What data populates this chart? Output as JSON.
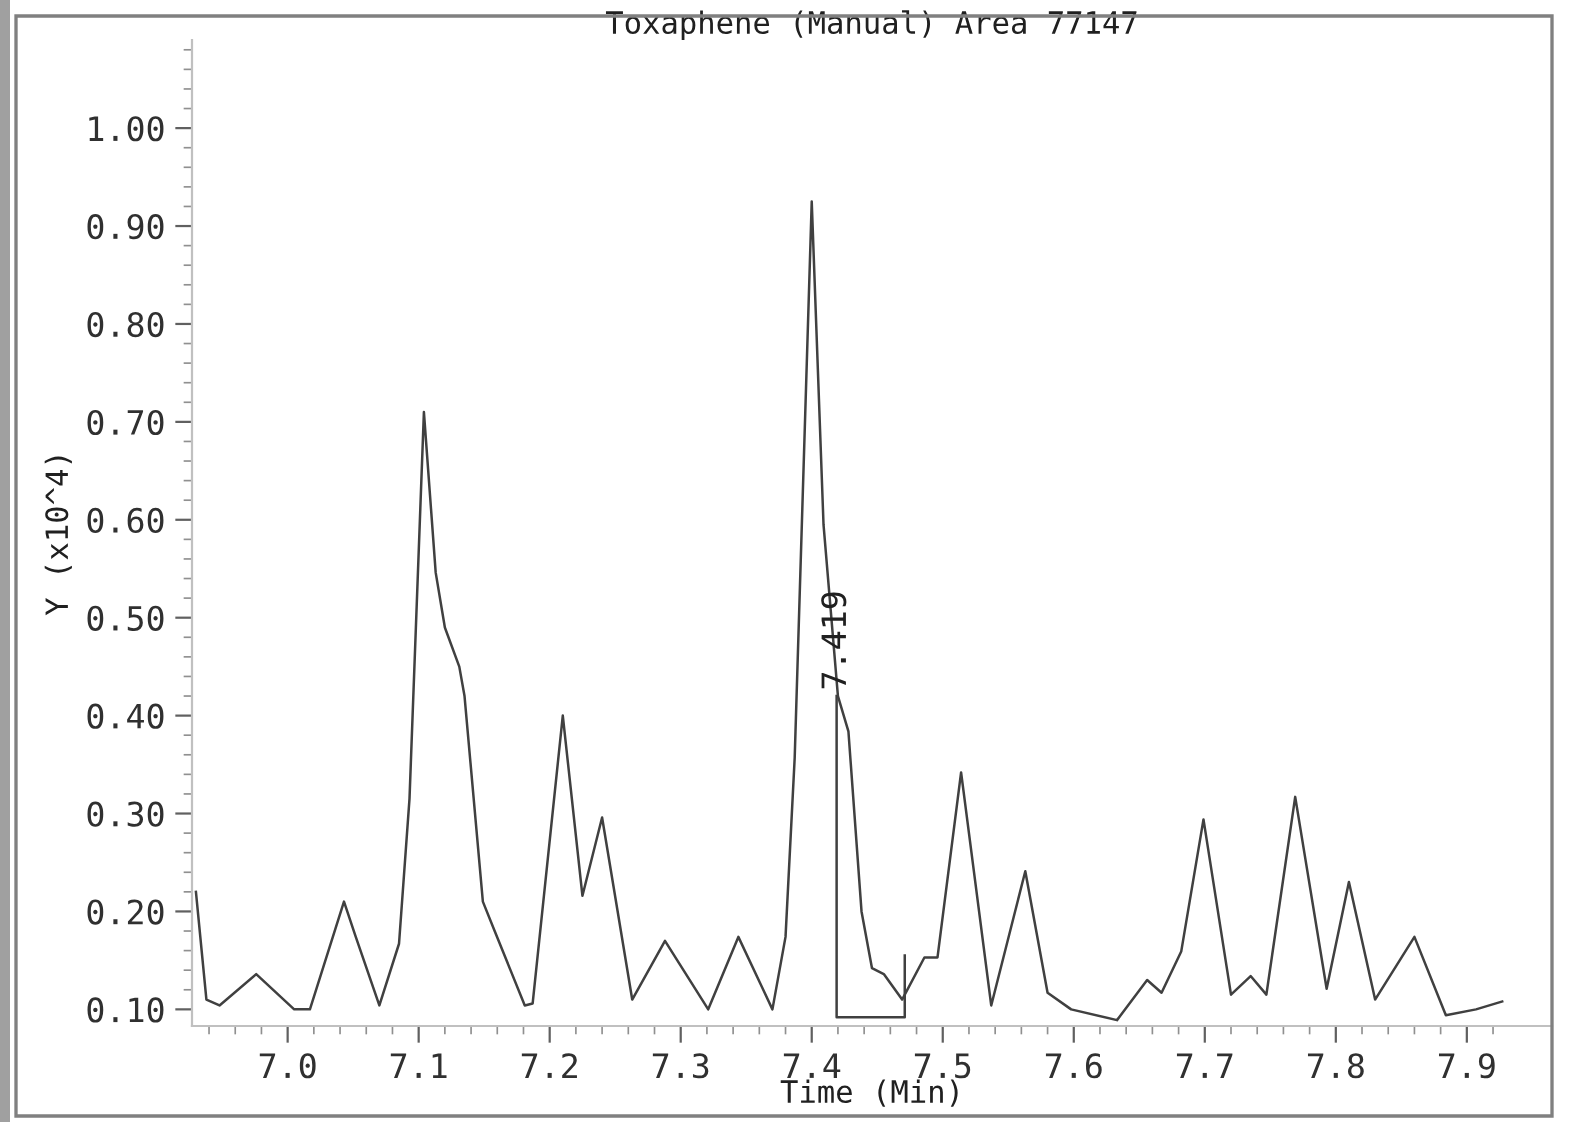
{
  "chart_data": {
    "type": "line",
    "title": "Toxaphene (Manual) Area 77147",
    "xlabel": "Time (Min)",
    "ylabel": "Y (x10^4)",
    "series": [
      {
        "color": "#404040",
        "x": [
          6.93,
          6.938,
          6.948,
          6.976,
          7.005,
          7.017,
          7.043,
          7.052,
          7.07,
          7.085,
          7.093,
          7.104,
          7.113,
          7.12,
          7.131,
          7.135,
          7.149,
          7.158,
          7.181,
          7.187,
          7.21,
          7.225,
          7.24,
          7.263,
          7.288,
          7.321,
          7.344,
          7.37,
          7.38,
          7.387,
          7.4,
          7.409,
          7.42,
          7.428,
          7.438,
          7.446,
          7.455,
          7.469,
          7.486,
          7.496,
          7.514,
          7.537,
          7.563,
          7.58,
          7.598,
          7.633,
          7.656,
          7.667,
          7.682,
          7.699,
          7.72,
          7.735,
          7.747,
          7.769,
          7.793,
          7.81,
          7.83,
          7.86,
          7.884,
          7.907,
          7.927
        ],
        "values": [
          0.22,
          0.11,
          0.104,
          0.136,
          0.1,
          0.1,
          0.21,
          0.174,
          0.104,
          0.167,
          0.315,
          0.71,
          0.546,
          0.49,
          0.45,
          0.42,
          0.21,
          0.18,
          0.104,
          0.106,
          0.4,
          0.216,
          0.296,
          0.11,
          0.17,
          0.1,
          0.174,
          0.1,
          0.174,
          0.357,
          0.925,
          0.595,
          0.42,
          0.384,
          0.2,
          0.142,
          0.136,
          0.11,
          0.153,
          0.153,
          0.342,
          0.104,
          0.241,
          0.117,
          0.1,
          0.089,
          0.13,
          0.117,
          0.159,
          0.294,
          0.115,
          0.134,
          0.115,
          0.317,
          0.121,
          0.23,
          0.11,
          0.174,
          0.094,
          0.1,
          0.108
        ]
      },
      {
        "color": "#404040",
        "x": [
          7.419,
          7.419,
          7.471,
          7.471
        ],
        "values": [
          0.42,
          0.092,
          0.092,
          0.155
        ]
      }
    ],
    "annotations": [
      {
        "text": "7.419",
        "x": 7.419,
        "y": 0.42
      }
    ],
    "xlim": [
      6.927,
      7.965
    ],
    "ylim": [
      0.083,
      1.09
    ],
    "xticks": [
      {
        "value": 6.94,
        "label": null
      },
      {
        "value": 6.96,
        "label": null
      },
      {
        "value": 6.98,
        "label": null
      },
      {
        "value": 7.0,
        "label": "7.0"
      },
      {
        "value": 7.02,
        "label": null
      },
      {
        "value": 7.04,
        "label": null
      },
      {
        "value": 7.06,
        "label": null
      },
      {
        "value": 7.08,
        "label": null
      },
      {
        "value": 7.1,
        "label": "7.1"
      },
      {
        "value": 7.12,
        "label": null
      },
      {
        "value": 7.14,
        "label": null
      },
      {
        "value": 7.16,
        "label": null
      },
      {
        "value": 7.18,
        "label": null
      },
      {
        "value": 7.2,
        "label": "7.2"
      },
      {
        "value": 7.22,
        "label": null
      },
      {
        "value": 7.24,
        "label": null
      },
      {
        "value": 7.26,
        "label": null
      },
      {
        "value": 7.28,
        "label": null
      },
      {
        "value": 7.3,
        "label": "7.3"
      },
      {
        "value": 7.32,
        "label": null
      },
      {
        "value": 7.34,
        "label": null
      },
      {
        "value": 7.36,
        "label": null
      },
      {
        "value": 7.38,
        "label": null
      },
      {
        "value": 7.4,
        "label": "7.4"
      },
      {
        "value": 7.42,
        "label": null
      },
      {
        "value": 7.44,
        "label": null
      },
      {
        "value": 7.46,
        "label": null
      },
      {
        "value": 7.48,
        "label": null
      },
      {
        "value": 7.5,
        "label": "7.5"
      },
      {
        "value": 7.52,
        "label": null
      },
      {
        "value": 7.54,
        "label": null
      },
      {
        "value": 7.56,
        "label": null
      },
      {
        "value": 7.58,
        "label": null
      },
      {
        "value": 7.6,
        "label": "7.6"
      },
      {
        "value": 7.62,
        "label": null
      },
      {
        "value": 7.64,
        "label": null
      },
      {
        "value": 7.66,
        "label": null
      },
      {
        "value": 7.68,
        "label": null
      },
      {
        "value": 7.7,
        "label": "7.7"
      },
      {
        "value": 7.72,
        "label": null
      },
      {
        "value": 7.74,
        "label": null
      },
      {
        "value": 7.76,
        "label": null
      },
      {
        "value": 7.78,
        "label": null
      },
      {
        "value": 7.8,
        "label": "7.8"
      },
      {
        "value": 7.82,
        "label": null
      },
      {
        "value": 7.84,
        "label": null
      },
      {
        "value": 7.86,
        "label": null
      },
      {
        "value": 7.88,
        "label": null
      },
      {
        "value": 7.9,
        "label": "7.9"
      },
      {
        "value": 7.92,
        "label": null
      }
    ],
    "yticks": [
      {
        "value": 0.1,
        "label": "0.10"
      },
      {
        "value": 0.12,
        "label": null
      },
      {
        "value": 0.14,
        "label": null
      },
      {
        "value": 0.16,
        "label": null
      },
      {
        "value": 0.18,
        "label": null
      },
      {
        "value": 0.2,
        "label": "0.20"
      },
      {
        "value": 0.22,
        "label": null
      },
      {
        "value": 0.24,
        "label": null
      },
      {
        "value": 0.26,
        "label": null
      },
      {
        "value": 0.28,
        "label": null
      },
      {
        "value": 0.3,
        "label": "0.30"
      },
      {
        "value": 0.32,
        "label": null
      },
      {
        "value": 0.34,
        "label": null
      },
      {
        "value": 0.36,
        "label": null
      },
      {
        "value": 0.38,
        "label": null
      },
      {
        "value": 0.4,
        "label": "0.40"
      },
      {
        "value": 0.42,
        "label": null
      },
      {
        "value": 0.44,
        "label": null
      },
      {
        "value": 0.46,
        "label": null
      },
      {
        "value": 0.48,
        "label": null
      },
      {
        "value": 0.5,
        "label": "0.50"
      },
      {
        "value": 0.52,
        "label": null
      },
      {
        "value": 0.54,
        "label": null
      },
      {
        "value": 0.56,
        "label": null
      },
      {
        "value": 0.58,
        "label": null
      },
      {
        "value": 0.6,
        "label": "0.60"
      },
      {
        "value": 0.62,
        "label": null
      },
      {
        "value": 0.64,
        "label": null
      },
      {
        "value": 0.66,
        "label": null
      },
      {
        "value": 0.68,
        "label": null
      },
      {
        "value": 0.7,
        "label": "0.70"
      },
      {
        "value": 0.72,
        "label": null
      },
      {
        "value": 0.74,
        "label": null
      },
      {
        "value": 0.76,
        "label": null
      },
      {
        "value": 0.78,
        "label": null
      },
      {
        "value": 0.8,
        "label": "0.80"
      },
      {
        "value": 0.82,
        "label": null
      },
      {
        "value": 0.84,
        "label": null
      },
      {
        "value": 0.86,
        "label": null
      },
      {
        "value": 0.88,
        "label": null
      },
      {
        "value": 0.9,
        "label": "0.90"
      },
      {
        "value": 0.92,
        "label": null
      },
      {
        "value": 0.94,
        "label": null
      },
      {
        "value": 0.96,
        "label": null
      },
      {
        "value": 0.98,
        "label": null
      },
      {
        "value": 1.0,
        "label": "1.00"
      },
      {
        "value": 1.02,
        "label": null
      },
      {
        "value": 1.04,
        "label": null
      },
      {
        "value": 1.06,
        "label": null
      },
      {
        "value": 1.08,
        "label": null
      }
    ],
    "grid": false,
    "legend": false,
    "marker": "none",
    "line_style": "solid"
  }
}
